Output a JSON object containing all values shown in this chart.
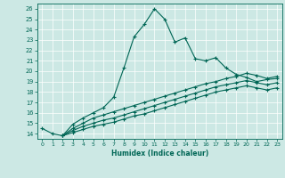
{
  "xlabel": "Humidex (Indice chaleur)",
  "bg_color": "#cce8e4",
  "line_color": "#006655",
  "xlim": [
    -0.5,
    23.5
  ],
  "ylim": [
    13.5,
    26.5
  ],
  "xticks": [
    0,
    1,
    2,
    3,
    4,
    5,
    6,
    7,
    8,
    9,
    10,
    11,
    12,
    13,
    14,
    15,
    16,
    17,
    18,
    19,
    20,
    21,
    22,
    23
  ],
  "yticks": [
    14,
    15,
    16,
    17,
    18,
    19,
    20,
    21,
    22,
    23,
    24,
    25,
    26
  ],
  "series1_x": [
    0,
    1,
    2,
    3,
    4,
    5,
    6,
    7,
    8,
    9,
    10,
    11,
    12,
    13,
    14,
    15,
    16,
    17,
    18,
    19,
    20,
    21,
    22,
    23
  ],
  "series1_y": [
    14.5,
    14.0,
    13.8,
    14.9,
    15.5,
    16.0,
    16.5,
    17.5,
    20.3,
    23.3,
    24.5,
    26.0,
    25.0,
    22.8,
    23.2,
    21.2,
    21.0,
    21.3,
    20.3,
    19.7,
    19.4,
    19.0,
    19.2,
    19.3
  ],
  "series2_x": [
    2,
    3,
    4,
    5,
    6,
    7,
    8,
    9,
    10,
    11,
    12,
    13,
    14,
    15,
    16,
    17,
    18,
    19,
    20,
    21,
    22,
    23
  ],
  "series2_y": [
    13.8,
    14.5,
    15.0,
    15.5,
    15.8,
    16.1,
    16.4,
    16.7,
    17.0,
    17.3,
    17.6,
    17.9,
    18.2,
    18.5,
    18.8,
    19.0,
    19.3,
    19.5,
    19.8,
    19.6,
    19.3,
    19.5
  ],
  "series3_x": [
    2,
    3,
    4,
    5,
    6,
    7,
    8,
    9,
    10,
    11,
    12,
    13,
    14,
    15,
    16,
    17,
    18,
    19,
    20,
    21,
    22,
    23
  ],
  "series3_y": [
    13.8,
    14.3,
    14.7,
    15.0,
    15.3,
    15.5,
    15.8,
    16.1,
    16.4,
    16.7,
    17.0,
    17.3,
    17.6,
    17.9,
    18.2,
    18.5,
    18.7,
    18.9,
    19.1,
    18.9,
    18.7,
    18.9
  ],
  "series4_x": [
    2,
    3,
    4,
    5,
    6,
    7,
    8,
    9,
    10,
    11,
    12,
    13,
    14,
    15,
    16,
    17,
    18,
    19,
    20,
    21,
    22,
    23
  ],
  "series4_y": [
    13.8,
    14.1,
    14.4,
    14.7,
    14.9,
    15.1,
    15.4,
    15.7,
    15.9,
    16.2,
    16.5,
    16.8,
    17.1,
    17.4,
    17.7,
    18.0,
    18.2,
    18.4,
    18.6,
    18.4,
    18.2,
    18.4
  ]
}
